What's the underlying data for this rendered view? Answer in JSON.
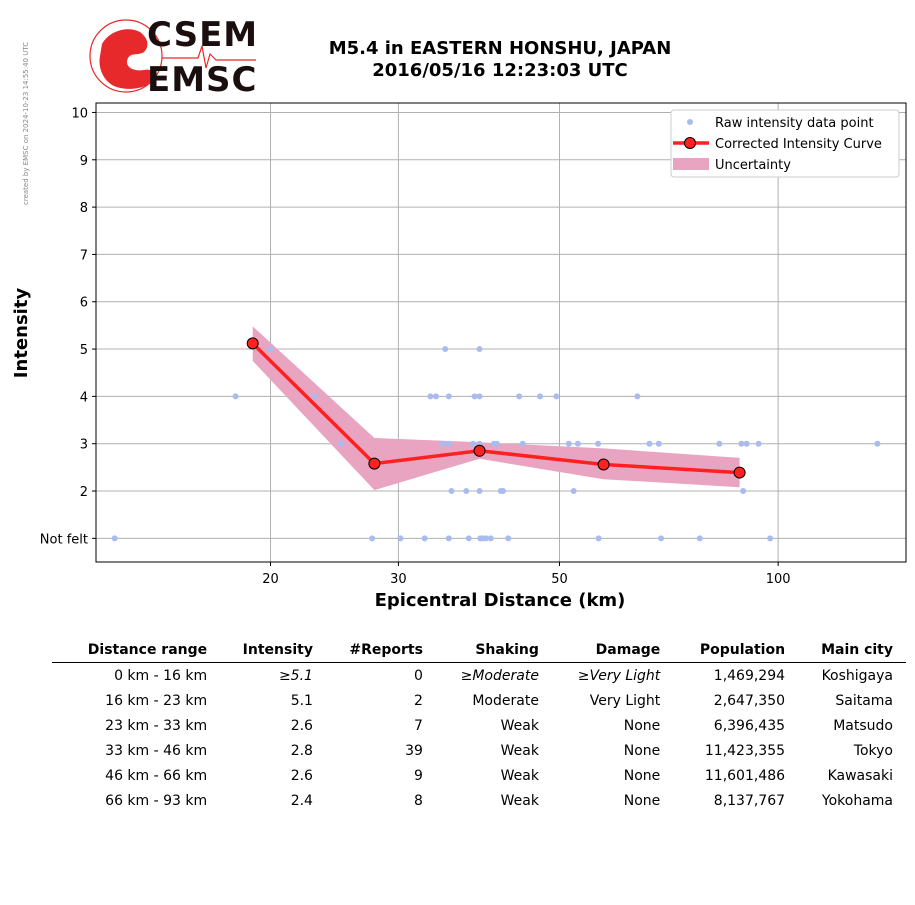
{
  "watermark": "created by EMSC on 2024-10-23 14:55:40 UTC",
  "logo": {
    "line1": "CSEM",
    "line2": "EMSC",
    "brand_color": "#e8292b"
  },
  "header": {
    "title_line1": "M5.4 in EASTERN HONSHU, JAPAN",
    "title_line2": "2016/05/16 12:23:03 UTC"
  },
  "chart_data": {
    "type": "scatter",
    "xlabel": "Epicentral Distance (km)",
    "ylabel": "Intensity",
    "x_scale": "log",
    "xlim": [
      11.5,
      150
    ],
    "ylim": [
      0.5,
      10.2
    ],
    "x_ticks": [
      {
        "value": 20,
        "label": "20"
      },
      {
        "value": 30,
        "label": "30"
      },
      {
        "value": 50,
        "label": "50"
      },
      {
        "value": 100,
        "label": "100"
      }
    ],
    "y_ticks": [
      {
        "value": 1,
        "label": "Not felt"
      },
      {
        "value": 2,
        "label": "2"
      },
      {
        "value": 3,
        "label": "3"
      },
      {
        "value": 4,
        "label": "4"
      },
      {
        "value": 5,
        "label": "5"
      },
      {
        "value": 6,
        "label": "6"
      },
      {
        "value": 7,
        "label": "7"
      },
      {
        "value": 8,
        "label": "8"
      },
      {
        "value": 9,
        "label": "9"
      },
      {
        "value": 10,
        "label": "10"
      }
    ],
    "grid": true,
    "legend_position": "top-right",
    "legend": [
      "Raw intensity data point",
      "Corrected Intensity Curve",
      "Uncertainty"
    ],
    "colors": {
      "points": "#aabbee",
      "curve": "#ff2020",
      "marker_fill": "#ff2020",
      "uncertainty": "#e8a4c0"
    },
    "raw_points": [
      [
        12.2,
        1
      ],
      [
        17.9,
        4
      ],
      [
        20.0,
        5
      ],
      [
        23.0,
        4
      ],
      [
        25.0,
        3
      ],
      [
        27.6,
        1
      ],
      [
        30.2,
        1
      ],
      [
        32.6,
        1
      ],
      [
        33.2,
        4
      ],
      [
        33.8,
        4
      ],
      [
        34.8,
        5
      ],
      [
        35.2,
        4
      ],
      [
        35.2,
        1
      ],
      [
        35.5,
        2
      ],
      [
        34.5,
        3
      ],
      [
        35.2,
        3
      ],
      [
        37.2,
        2
      ],
      [
        37.5,
        1
      ],
      [
        38.2,
        4
      ],
      [
        38.8,
        4
      ],
      [
        38.8,
        5
      ],
      [
        38.8,
        2
      ],
      [
        38.9,
        1
      ],
      [
        39.2,
        1
      ],
      [
        39.6,
        1
      ],
      [
        40.2,
        1
      ],
      [
        38.0,
        3
      ],
      [
        38.8,
        3
      ],
      [
        40.6,
        3
      ],
      [
        41.0,
        3
      ],
      [
        41.5,
        2
      ],
      [
        41.8,
        2
      ],
      [
        42.5,
        1
      ],
      [
        44.0,
        4
      ],
      [
        44.5,
        3
      ],
      [
        47.0,
        4
      ],
      [
        49.5,
        4
      ],
      [
        51.5,
        3
      ],
      [
        52.3,
        2
      ],
      [
        53.0,
        3
      ],
      [
        56.5,
        3
      ],
      [
        56.6,
        1
      ],
      [
        64.0,
        4
      ],
      [
        66.5,
        3
      ],
      [
        68.5,
        3
      ],
      [
        69.0,
        1
      ],
      [
        78.0,
        1
      ],
      [
        83.0,
        3
      ],
      [
        89.0,
        3
      ],
      [
        89.5,
        2
      ],
      [
        90.5,
        3
      ],
      [
        94.0,
        3
      ],
      [
        97.5,
        1
      ],
      [
        137.0,
        3
      ]
    ],
    "curve": [
      {
        "x": 18.9,
        "y": 5.12
      },
      {
        "x": 27.8,
        "y": 2.58
      },
      {
        "x": 38.8,
        "y": 2.85
      },
      {
        "x": 57.5,
        "y": 2.56
      },
      {
        "x": 88.5,
        "y": 2.39
      }
    ],
    "uncertainty": [
      {
        "x": 18.9,
        "low": 4.75,
        "high": 5.48
      },
      {
        "x": 27.8,
        "low": 2.02,
        "high": 3.12
      },
      {
        "x": 38.8,
        "low": 2.68,
        "high": 3.03
      },
      {
        "x": 57.5,
        "low": 2.25,
        "high": 2.9
      },
      {
        "x": 88.5,
        "low": 2.08,
        "high": 2.7
      }
    ]
  },
  "table": {
    "headers": [
      "Distance range",
      "Intensity",
      "#Reports",
      "Shaking",
      "Damage",
      "Population",
      "Main city"
    ],
    "rows": [
      {
        "range": "0 km -   16 km",
        "intensity": "≥5.1",
        "reports": "0",
        "shaking": "≥Moderate",
        "damage": "≥Very Light",
        "population": "1,469,294",
        "city": "Koshigaya",
        "italic": true
      },
      {
        "range": "16 km -   23 km",
        "intensity": "5.1",
        "reports": "2",
        "shaking": "Moderate",
        "damage": "Very Light",
        "population": "2,647,350",
        "city": "Saitama",
        "italic": false
      },
      {
        "range": "23 km -   33 km",
        "intensity": "2.6",
        "reports": "7",
        "shaking": "Weak",
        "damage": "None",
        "population": "6,396,435",
        "city": "Matsudo",
        "italic": false
      },
      {
        "range": "33 km -   46 km",
        "intensity": "2.8",
        "reports": "39",
        "shaking": "Weak",
        "damage": "None",
        "population": "11,423,355",
        "city": "Tokyo",
        "italic": false
      },
      {
        "range": "46 km -   66 km",
        "intensity": "2.6",
        "reports": "9",
        "shaking": "Weak",
        "damage": "None",
        "population": "11,601,486",
        "city": "Kawasaki",
        "italic": false
      },
      {
        "range": "66 km -   93 km",
        "intensity": "2.4",
        "reports": "8",
        "shaking": "Weak",
        "damage": "None",
        "population": "8,137,767",
        "city": "Yokohama",
        "italic": false
      }
    ]
  }
}
